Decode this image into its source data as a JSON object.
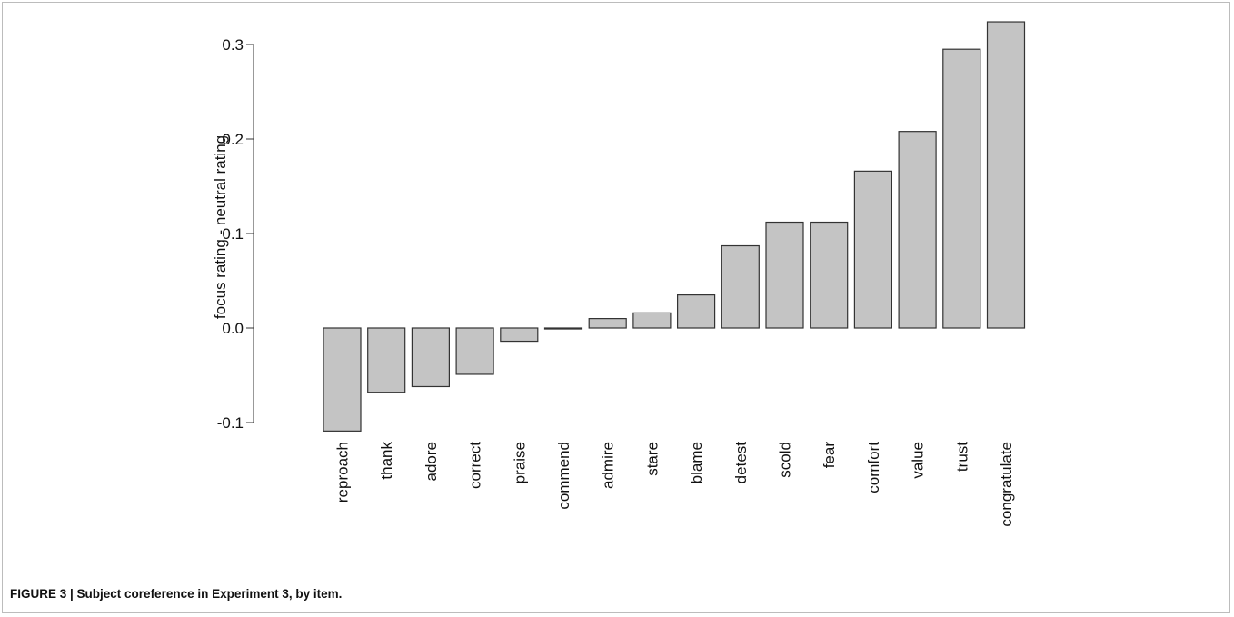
{
  "caption": "FIGURE 3 | Subject coreference in Experiment 3, by item.",
  "chart_data": {
    "type": "bar",
    "title": "",
    "xlabel": "",
    "ylabel": "focus rating - neutral rating",
    "categories": [
      "reproach",
      "thank",
      "adore",
      "correct",
      "praise",
      "commend",
      "admire",
      "stare",
      "blame",
      "detest",
      "scold",
      "fear",
      "comfort",
      "value",
      "trust",
      "congratulate"
    ],
    "values": [
      -0.109,
      -0.068,
      -0.062,
      -0.049,
      -0.014,
      -0.001,
      0.01,
      0.016,
      0.035,
      0.087,
      0.112,
      0.112,
      0.166,
      0.208,
      0.295,
      0.324
    ],
    "yticks": [
      "-0.1",
      "0.0",
      "0.1",
      "0.2",
      "0.3"
    ],
    "ylim": [
      -0.109,
      0.324
    ],
    "bar_color": "#c4c4c4",
    "bar_stroke": "#333333",
    "grid": false,
    "legend": "none"
  }
}
